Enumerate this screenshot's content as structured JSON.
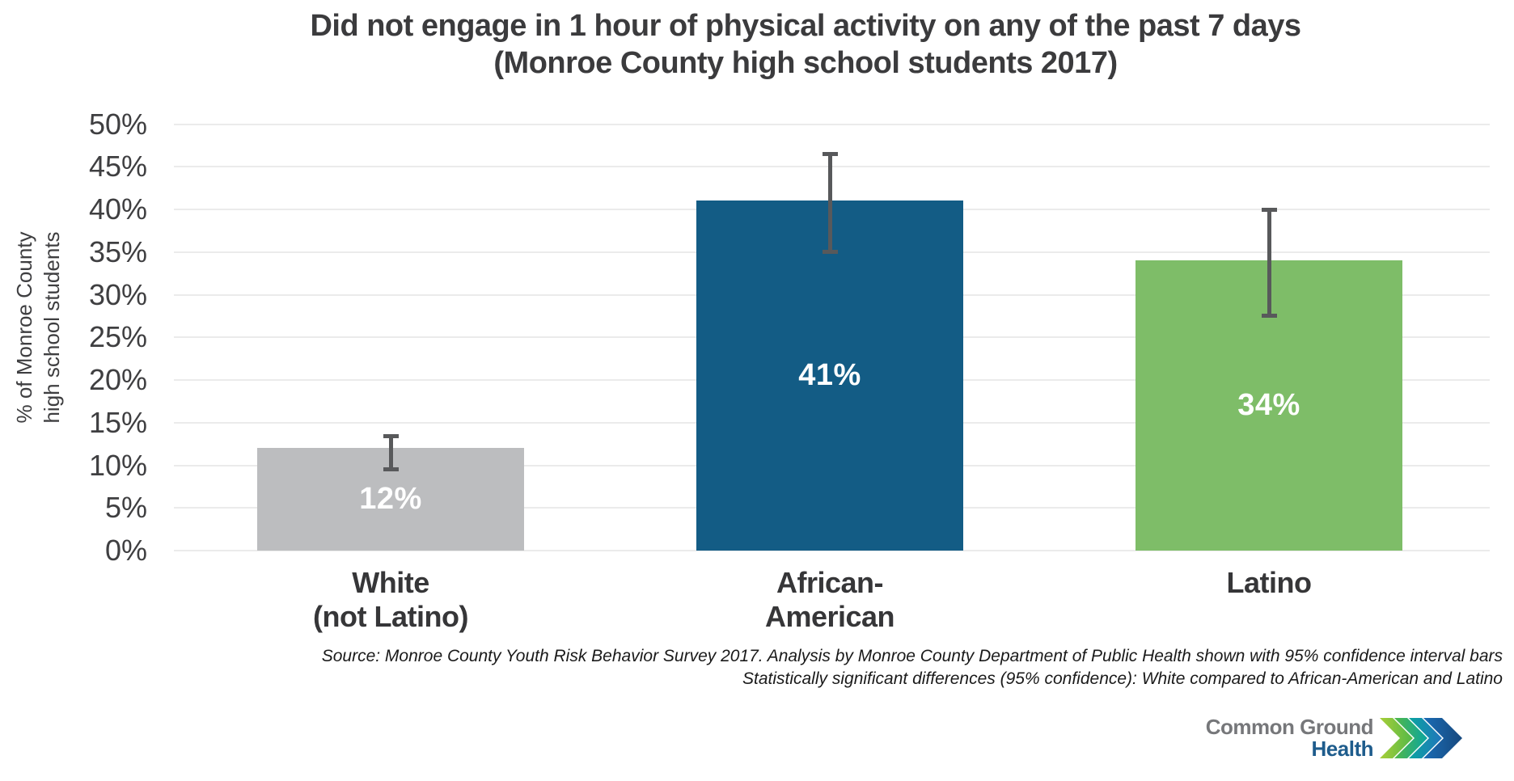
{
  "title": {
    "line1": "Did not engage in 1 hour of physical activity on any of the past 7 days",
    "line2": "(Monroe County high school students 2017)"
  },
  "y_axis": {
    "title_line1": "% of Monroe County",
    "title_line2": "high school students",
    "ticks": [
      "0%",
      "5%",
      "10%",
      "15%",
      "20%",
      "25%",
      "30%",
      "35%",
      "40%",
      "45%",
      "50%"
    ]
  },
  "chart_data": {
    "type": "bar",
    "title": "Did not engage in 1 hour of physical activity on any of the past 7 days (Monroe County high school students 2017)",
    "ylabel": "% of Monroe County high school students",
    "xlabel": "",
    "ylim": [
      0,
      50
    ],
    "ytick_step": 5,
    "grid": true,
    "legend": false,
    "categories": [
      "White (not Latino)",
      "African-American",
      "Latino"
    ],
    "category_lines": [
      [
        "White",
        "(not Latino)"
      ],
      [
        "African-",
        "American"
      ],
      [
        "Latino"
      ]
    ],
    "values": [
      12,
      41,
      34
    ],
    "value_labels": [
      "12%",
      "41%",
      "34%"
    ],
    "bar_colors": [
      "#bcbdbf",
      "#135c85",
      "#7ebd68"
    ],
    "error_bars": {
      "meaning": "95% confidence interval bars",
      "low": [
        9.5,
        35,
        27.5
      ],
      "high": [
        13.5,
        46.5,
        40
      ],
      "color": "#58595b"
    }
  },
  "source": {
    "line1": "Source: Monroe County Youth Risk Behavior Survey 2017.  Analysis by Monroe County Department of Public Health shown with 95% confidence interval bars",
    "line2": "Statistically significant differences (95% confidence): White compared to African-American and Latino"
  },
  "logo": {
    "line1": "Common Ground",
    "line2": "Health",
    "gray": "#76777a",
    "blue": "#1e5c8c",
    "chevron_colors": [
      "#a8ce38",
      "#52b848",
      "#0aa5a0",
      "#2175bc",
      "#17497e"
    ]
  }
}
